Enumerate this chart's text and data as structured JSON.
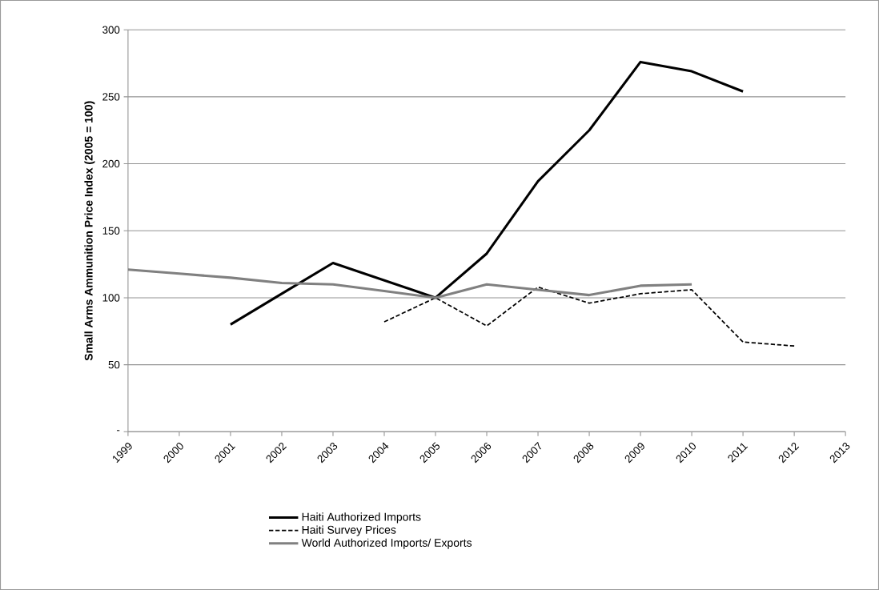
{
  "chart_data": {
    "type": "line",
    "ylabel": "Small Arms Ammunition Price Index (2005 = 100)",
    "xlim": [
      1999,
      2013
    ],
    "xticks": [
      1999,
      2000,
      2001,
      2002,
      2003,
      2004,
      2005,
      2006,
      2007,
      2008,
      2009,
      2010,
      2011,
      2012,
      2013
    ],
    "ylim": [
      0,
      300
    ],
    "yticks": [
      {
        "value": 0,
        "label": "-"
      },
      50,
      100,
      150,
      200,
      250,
      300
    ],
    "grid": "y",
    "legend": "bottom",
    "marker": "none",
    "series": [
      {
        "name": "Haiti Authorized Imports",
        "color": "#000000",
        "line_style": "solid",
        "x": [
          2001,
          2002,
          2003,
          2004,
          2005,
          2006,
          2007,
          2008,
          2009,
          2010,
          2011
        ],
        "values": [
          80,
          103,
          126,
          113,
          100,
          133,
          187,
          225,
          276,
          269,
          254
        ]
      },
      {
        "name": "Haiti Survey Prices",
        "color": "#000000",
        "line_style": "dashed",
        "x": [
          2004,
          2005,
          2006,
          2007,
          2008,
          2009,
          2010,
          2011,
          2012
        ],
        "values": [
          82,
          100,
          79,
          108,
          96,
          103,
          106,
          67,
          64
        ]
      },
      {
        "name": "World Authorized Imports/ Exports",
        "color": "#808080",
        "line_style": "solid",
        "x": [
          1999,
          2000,
          2001,
          2002,
          2003,
          2004,
          2005,
          2006,
          2007,
          2008,
          2009,
          2010
        ],
        "values": [
          121,
          118,
          115,
          111,
          110,
          105,
          100,
          110,
          106,
          102,
          109,
          110
        ]
      }
    ]
  }
}
